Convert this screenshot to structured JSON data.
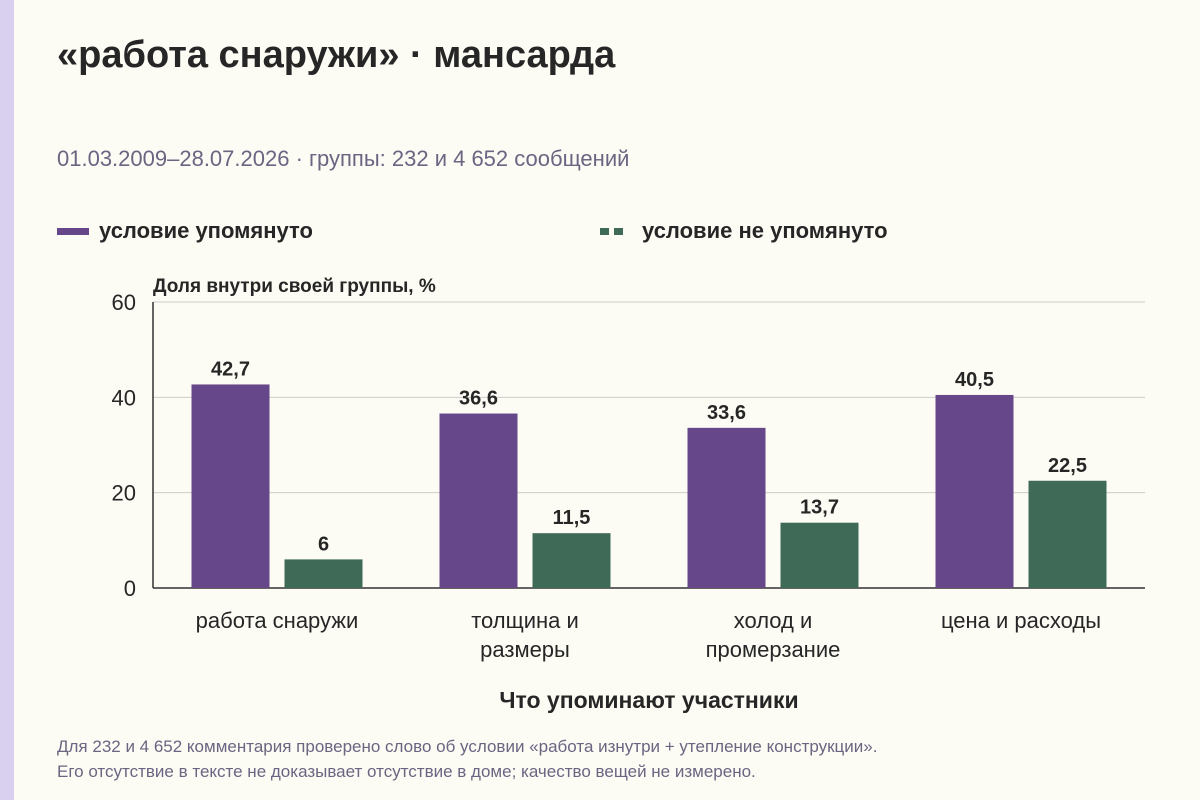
{
  "title": "«работа снаружи» · мансарда",
  "subtitle": "01.03.2009–28.07.2026 · группы: 232 и 4 652 сообщений",
  "notes": [
    "Для 232 и 4 652 комментария проверено слово об условии «работа изнутри + утепление конструкции».",
    "Его отсутствие в тексте не доказывает отсутствие в доме; качество вещей не измерено."
  ],
  "colors": {
    "mentioned": "#664789",
    "not_mentioned": "#3f6a57",
    "accent": "#d9d0ef"
  },
  "chart_data": {
    "type": "bar",
    "categories": [
      [
        "работа снаружи"
      ],
      [
        "толщина и",
        "размеры"
      ],
      [
        "холод и",
        "промерзание"
      ],
      [
        "цена и расходы"
      ]
    ],
    "series": [
      {
        "name": "условие упомянуто",
        "values": [
          42.7,
          36.6,
          33.6,
          40.5
        ],
        "labels": [
          "42,7",
          "36,6",
          "33,6",
          "40,5"
        ]
      },
      {
        "name": "условие не упомянуто",
        "values": [
          6,
          11.5,
          13.7,
          22.5
        ],
        "labels": [
          "6",
          "11,5",
          "13,7",
          "22,5"
        ]
      }
    ],
    "ylabel": "Доля внутри своей группы, %",
    "xlabel": "Что упоминают участники",
    "ylim": [
      0,
      60
    ],
    "yticks": [
      0,
      20,
      40,
      60
    ],
    "grid": true,
    "legend": "top-left"
  }
}
